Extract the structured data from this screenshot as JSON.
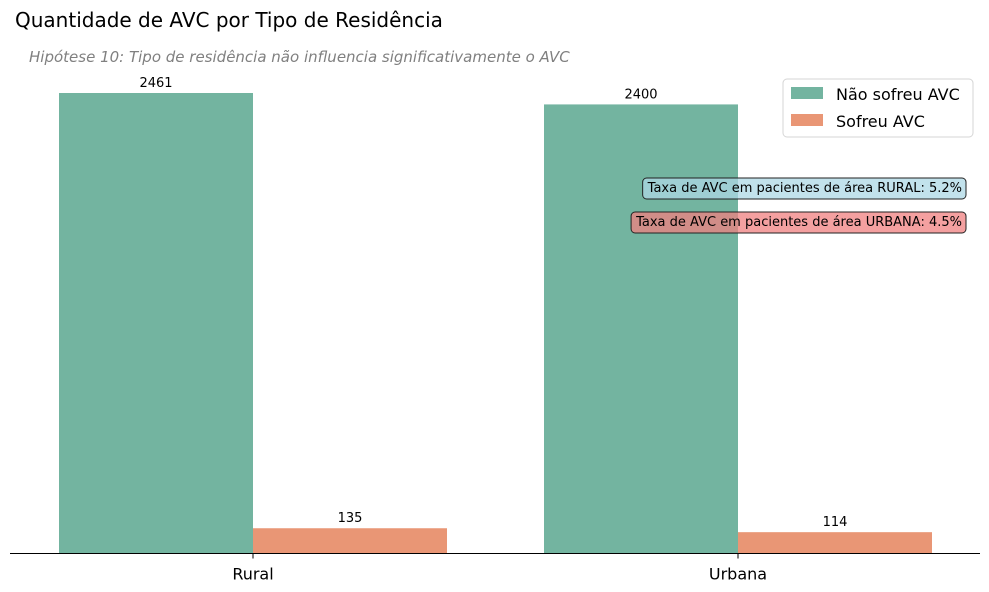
{
  "chart_data": {
    "type": "bar",
    "title": "Quantidade de AVC por Tipo de Residência",
    "subtitle": "Hipótese 10: Tipo de residência não influencia significativamente o AVC",
    "xlabel": "",
    "ylabel": "",
    "categories": [
      "Rural",
      "Urbana"
    ],
    "series": [
      {
        "name": "Não sofreu AVC",
        "values": [
          2461,
          2400
        ],
        "color": "#73b4a0"
      },
      {
        "name": "Sofreu AVC",
        "values": [
          135,
          114
        ],
        "color": "#e99675"
      }
    ],
    "ylim": [
      0,
      2461
    ],
    "grid": false,
    "legend": "top-right",
    "annotations": [
      {
        "text": "Taxa de AVC em pacientes de área RURAL: 5.2%",
        "box_color": "#add8e6"
      },
      {
        "text": "Taxa de AVC em pacientes de área URBANA: 4.5%",
        "box_color": "#f08080"
      }
    ]
  }
}
